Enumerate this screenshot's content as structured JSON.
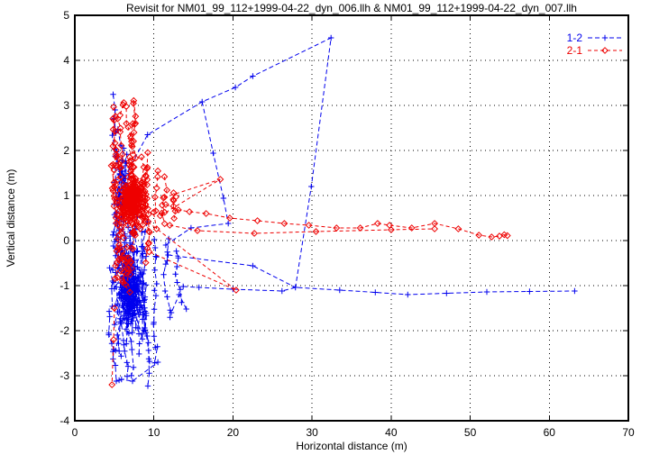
{
  "chart_data": {
    "type": "scatter",
    "title": "Revisit for NM01_99_112+1999-04-22_dyn_006.llh & NM01_99_112+1999-04-22_dyn_007.llh",
    "xlabel": "Horizontal distance (m)",
    "ylabel": "Vertical distance (m)",
    "xlim": [
      0,
      70
    ],
    "ylim": [
      -4,
      5
    ],
    "xticks": [
      0,
      10,
      20,
      30,
      40,
      50,
      60,
      70
    ],
    "yticks": [
      -4,
      -3,
      -2,
      -1,
      0,
      1,
      2,
      3,
      4,
      5
    ],
    "grid": true,
    "grid_style": "dotted",
    "background": "#ffffff",
    "border_color": "#000000",
    "legend_position": "top-right",
    "series": [
      {
        "name": "1-2",
        "color": "#0000ee",
        "marker": "plus",
        "linestyle": "dashed",
        "dash": "5,3",
        "seed": 12345,
        "cluster": {
          "strands": [
            {
              "x": 5.0,
              "y1": 3.1,
              "y2": -0.4
            },
            {
              "x": 5.3,
              "y1": 2.6,
              "y2": -2.7
            },
            {
              "x": 5.7,
              "y1": 1.4,
              "y2": -3.1
            },
            {
              "x": 6.1,
              "y1": 0.6,
              "y2": -2.9
            },
            {
              "x": 6.5,
              "y1": 0.4,
              "y2": -2.5
            },
            {
              "x": 7.0,
              "y1": 0.5,
              "y2": -3.1
            },
            {
              "x": 7.5,
              "y1": 0.3,
              "y2": -3.15
            },
            {
              "x": 8.1,
              "y1": 0.4,
              "y2": -2.6
            },
            {
              "x": 8.7,
              "y1": 0.2,
              "y2": -2.4
            },
            {
              "x": 9.4,
              "y1": 0.3,
              "y2": -2.0
            },
            {
              "x": 10.4,
              "y1": 0.1,
              "y2": -2.7
            },
            {
              "x": 11.5,
              "y1": 0.0,
              "y2": -1.6
            },
            {
              "x": 12.6,
              "y1": -0.2,
              "y2": -1.3
            }
          ],
          "blobs": [
            {
              "cx": 6.9,
              "cy": -1.1,
              "sx": 1.5,
              "sy": 0.8,
              "count": 150,
              "xmin": 4.3,
              "xmax": 13.5,
              "ymin": -3.1,
              "ymax": 0.3
            },
            {
              "cx": 6.0,
              "cy": 1.2,
              "sx": 0.9,
              "sy": 0.8,
              "count": 30,
              "xmin": 4.4,
              "xmax": 9.5,
              "ymin": 0.3,
              "ymax": 3.0
            }
          ]
        },
        "paths": [
          [
            [
              5.4,
              1.12
            ],
            [
              9.2,
              2.35
            ],
            [
              16.1,
              3.08
            ],
            [
              20.3,
              3.4
            ],
            [
              22.5,
              3.65
            ],
            [
              32.4,
              4.5
            ],
            [
              29.9,
              1.2
            ],
            [
              27.9,
              -1.04
            ]
          ],
          [
            [
              13.7,
              -1.02
            ],
            [
              15.7,
              -1.04
            ],
            [
              20.0,
              -1.08
            ],
            [
              26.2,
              -1.12
            ],
            [
              27.9,
              -1.04
            ],
            [
              33.5,
              -1.1
            ],
            [
              38.0,
              -1.15
            ],
            [
              42.1,
              -1.2
            ],
            [
              47.0,
              -1.17
            ],
            [
              52.1,
              -1.14
            ],
            [
              57.5,
              -1.13
            ],
            [
              63.2,
              -1.12
            ]
          ],
          [
            [
              16.1,
              3.08
            ],
            [
              17.5,
              1.94
            ],
            [
              18.8,
              0.94
            ],
            [
              19.4,
              0.38
            ],
            [
              14.7,
              0.28
            ],
            [
              11.5,
              -0.1
            ]
          ],
          [
            [
              11.8,
              -0.32
            ],
            [
              22.5,
              -0.56
            ],
            [
              27.9,
              -1.04
            ]
          ],
          [
            [
              14.1,
              -1.52
            ],
            [
              13.2,
              -1.2
            ],
            [
              12.2,
              -1.6
            ]
          ],
          [
            [
              5.6,
              -3.1
            ],
            [
              5.9,
              -3.08
            ],
            [
              7.3,
              -3.12
            ],
            [
              10.5,
              -2.7
            ]
          ]
        ]
      },
      {
        "name": "2-1",
        "color": "#ee0000",
        "marker": "diamond",
        "linestyle": "dashed",
        "dash": "4,3",
        "seed": 67890,
        "cluster": {
          "strands": [
            {
              "x": 4.9,
              "y1": 2.7,
              "y2": -0.2
            },
            {
              "x": 5.2,
              "y1": 3.05,
              "y2": 0.2
            },
            {
              "x": 5.6,
              "y1": 2.0,
              "y2": -0.9
            },
            {
              "x": 6.1,
              "y1": 3.1,
              "y2": 0.2
            },
            {
              "x": 6.4,
              "y1": 3.15,
              "y2": 0.3
            },
            {
              "x": 6.9,
              "y1": 1.9,
              "y2": -0.3
            },
            {
              "x": 7.3,
              "y1": 3.1,
              "y2": 0.2
            },
            {
              "x": 7.6,
              "y1": 2.9,
              "y2": 0.1
            },
            {
              "x": 8.2,
              "y1": 1.8,
              "y2": -0.5
            },
            {
              "x": 8.8,
              "y1": 1.7,
              "y2": 0.2
            },
            {
              "x": 9.5,
              "y1": 1.9,
              "y2": 0.1
            },
            {
              "x": 10.3,
              "y1": 1.5,
              "y2": 0.3
            },
            {
              "x": 11.2,
              "y1": 1.3,
              "y2": 0.4
            },
            {
              "x": 12.2,
              "y1": 1.1,
              "y2": 0.4
            }
          ],
          "blobs": [
            {
              "cx": 7.3,
              "cy": 0.9,
              "sx": 1.5,
              "sy": 0.45,
              "count": 170,
              "xmin": 4.4,
              "xmax": 13.5,
              "ymin": 0.0,
              "ymax": 2.1
            },
            {
              "cx": 6.5,
              "cy": -0.55,
              "sx": 1.1,
              "sy": 0.5,
              "count": 26,
              "xmin": 4.5,
              "xmax": 10.0,
              "ymin": -1.6,
              "ymax": 0.0
            }
          ]
        },
        "paths": [
          [
            [
              11.5,
              0.8
            ],
            [
              13.1,
              0.68
            ],
            [
              14.5,
              0.64
            ],
            [
              16.6,
              0.6
            ],
            [
              19.6,
              0.5
            ],
            [
              23.1,
              0.44
            ],
            [
              26.5,
              0.38
            ],
            [
              29.6,
              0.34
            ],
            [
              33.1,
              0.28
            ],
            [
              36.1,
              0.28
            ],
            [
              38.3,
              0.38
            ],
            [
              39.8,
              0.34
            ],
            [
              42.6,
              0.28
            ],
            [
              45.5,
              0.38
            ],
            [
              48.5,
              0.26
            ],
            [
              51.1,
              0.12
            ],
            [
              52.7,
              0.08
            ],
            [
              53.7,
              0.1
            ],
            [
              54.3,
              0.13
            ],
            [
              54.7,
              0.11
            ]
          ],
          [
            [
              12.0,
              0.34
            ],
            [
              15.5,
              0.22
            ],
            [
              22.7,
              0.16
            ],
            [
              30.5,
              0.2
            ],
            [
              40.0,
              0.24
            ],
            [
              45.5,
              0.26
            ]
          ],
          [
            [
              10.8,
              0.55
            ],
            [
              18.4,
              1.36
            ],
            [
              11.2,
              0.95
            ]
          ],
          [
            [
              8.6,
              0.5
            ],
            [
              20.4,
              -1.1
            ],
            [
              9.4,
              -0.25
            ]
          ],
          [
            [
              5.0,
              -1.5
            ],
            [
              4.9,
              -2.2
            ],
            [
              4.7,
              -3.2
            ]
          ]
        ]
      }
    ]
  }
}
